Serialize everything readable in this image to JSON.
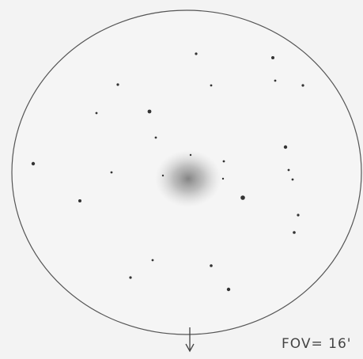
{
  "annotation": "FOV= 16'"
}
